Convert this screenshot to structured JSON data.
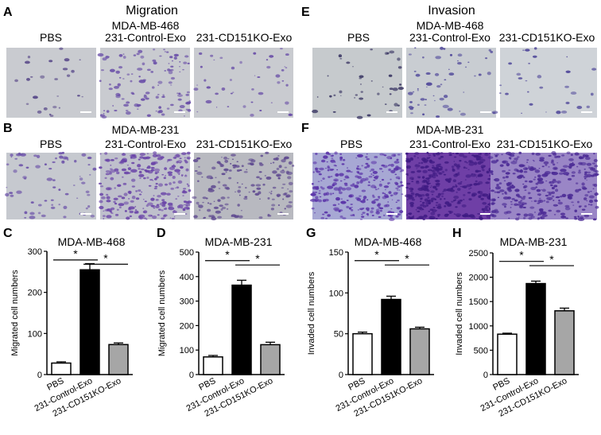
{
  "sections": {
    "migration": "Migration",
    "invasion": "Invasion"
  },
  "panel_letters": [
    "A",
    "B",
    "C",
    "D",
    "E",
    "F",
    "G",
    "H"
  ],
  "image_panels": [
    {
      "letter": "A",
      "cell_line": "MDA-MB-468",
      "labels": [
        "PBS",
        "231-Control-Exo",
        "231-CD151KO-Exo"
      ]
    },
    {
      "letter": "B",
      "cell_line": "MDA-MB-231",
      "labels": [
        "PBS",
        "231-Control-Exo",
        "231-CD151KO-Exo"
      ]
    },
    {
      "letter": "E",
      "cell_line": "MDA-MB-468",
      "labels": [
        "PBS",
        "231-Control-Exo",
        "231-CD151KO-Exo"
      ]
    },
    {
      "letter": "F",
      "cell_line": "MDA-MB-231",
      "labels": [
        "PBS",
        "231-Control-Exo",
        "231-CD151KO-Exo"
      ]
    }
  ],
  "significance_mark": "*",
  "chart_data": [
    {
      "type": "bar",
      "letter": "C",
      "title": "MDA-MB-468",
      "ylabel": "Migrated cell numbers",
      "xlabel": "",
      "categories": [
        "PBS",
        "231-Control-Exo",
        "231-CD151KO-Exo"
      ],
      "values": [
        28,
        255,
        73
      ],
      "errors": [
        3,
        15,
        4
      ],
      "ylim": [
        0,
        300
      ],
      "yticks": [
        "0",
        "100",
        "200",
        "300"
      ],
      "bar_colors": [
        "#ffffff",
        "#000000",
        "#a6a6a6"
      ]
    },
    {
      "type": "bar",
      "letter": "D",
      "title": "MDA-MB-231",
      "ylabel": "Migrated cell numbers",
      "xlabel": "",
      "categories": [
        "PBS",
        "231-Control-Exo",
        "231-CD151KO-Exo"
      ],
      "values": [
        72,
        365,
        122
      ],
      "errors": [
        6,
        20,
        10
      ],
      "ylim": [
        0,
        500
      ],
      "yticks": [
        "0",
        "100",
        "200",
        "300",
        "400",
        "500"
      ],
      "bar_colors": [
        "#ffffff",
        "#000000",
        "#a6a6a6"
      ]
    },
    {
      "type": "bar",
      "letter": "G",
      "title": "MDA-MB-468",
      "ylabel": "Invaded cell numbers",
      "xlabel": "",
      "categories": [
        "PBS",
        "231-Control-Exo",
        "231-CD151KO-Exo"
      ],
      "values": [
        50,
        92,
        56
      ],
      "errors": [
        2,
        4,
        2
      ],
      "ylim": [
        0,
        150
      ],
      "yticks": [
        "0",
        "50",
        "100",
        "150"
      ],
      "bar_colors": [
        "#ffffff",
        "#000000",
        "#a6a6a6"
      ]
    },
    {
      "type": "bar",
      "letter": "H",
      "title": "MDA-MB-231",
      "ylabel": "Invaded cell numbers",
      "xlabel": "",
      "categories": [
        "PBS",
        "231-Control-Exo",
        "231-CD151KO-Exo"
      ],
      "values": [
        830,
        1870,
        1310
      ],
      "errors": [
        20,
        50,
        55
      ],
      "ylim": [
        0,
        2500
      ],
      "yticks": [
        "0",
        "500",
        "1000",
        "1500",
        "2000",
        "2500"
      ],
      "bar_colors": [
        "#ffffff",
        "#000000",
        "#a6a6a6"
      ]
    }
  ]
}
